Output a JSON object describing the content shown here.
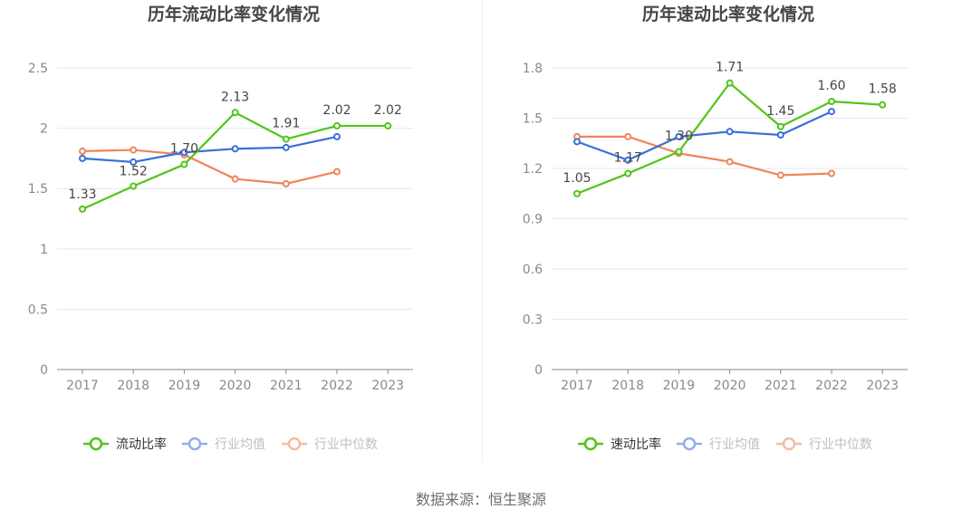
{
  "source_text": "数据来源：恒生聚源",
  "chart_data": [
    {
      "type": "line",
      "title": "历年流动比率变化情况",
      "categories": [
        "2017",
        "2018",
        "2019",
        "2020",
        "2021",
        "2022",
        "2023"
      ],
      "ylim": [
        0,
        2.5
      ],
      "yticks": [
        "0",
        "0.5",
        "1",
        "1.5",
        "2",
        "2.5"
      ],
      "ytick_values": [
        0,
        0.5,
        1,
        1.5,
        2,
        2.5
      ],
      "grid": true,
      "legend_position": "bottom",
      "series": [
        {
          "name": "流动比率",
          "color": "#52c41a",
          "values": [
            1.33,
            1.52,
            1.7,
            2.13,
            1.91,
            2.02,
            2.02
          ],
          "labels": [
            "1.33",
            "1.52",
            "1.70",
            "2.13",
            "1.91",
            "2.02",
            "2.02"
          ],
          "label_below": [
            0,
            1
          ]
        },
        {
          "name": "行业均值",
          "color": "#3a6fd8",
          "values": [
            1.75,
            1.72,
            1.8,
            1.83,
            1.84,
            1.93,
            null
          ]
        },
        {
          "name": "行业中位数",
          "color": "#f0845a",
          "values": [
            1.81,
            1.82,
            1.78,
            1.58,
            1.54,
            1.64,
            null
          ]
        }
      ]
    },
    {
      "type": "line",
      "title": "历年速动比率变化情况",
      "categories": [
        "2017",
        "2018",
        "2019",
        "2020",
        "2021",
        "2022",
        "2023"
      ],
      "ylim": [
        0,
        1.8
      ],
      "yticks": [
        "0",
        "0.3",
        "0.6",
        "0.9",
        "1.2",
        "1.5",
        "1.8"
      ],
      "ytick_values": [
        0,
        0.3,
        0.6,
        0.9,
        1.2,
        1.5,
        1.8
      ],
      "grid": true,
      "legend_position": "bottom",
      "series": [
        {
          "name": "速动比率",
          "color": "#52c41a",
          "values": [
            1.05,
            1.17,
            1.3,
            1.71,
            1.45,
            1.6,
            1.58
          ],
          "labels": [
            "1.05",
            "1.17",
            "1.30",
            "1.71",
            "1.45",
            "1.60",
            "1.58"
          ],
          "label_below": []
        },
        {
          "name": "行业均值",
          "color": "#3a6fd8",
          "values": [
            1.36,
            1.25,
            1.39,
            1.42,
            1.4,
            1.54,
            null
          ]
        },
        {
          "name": "行业中位数",
          "color": "#f0845a",
          "values": [
            1.39,
            1.39,
            1.29,
            1.24,
            1.16,
            1.17,
            null
          ]
        }
      ]
    }
  ]
}
